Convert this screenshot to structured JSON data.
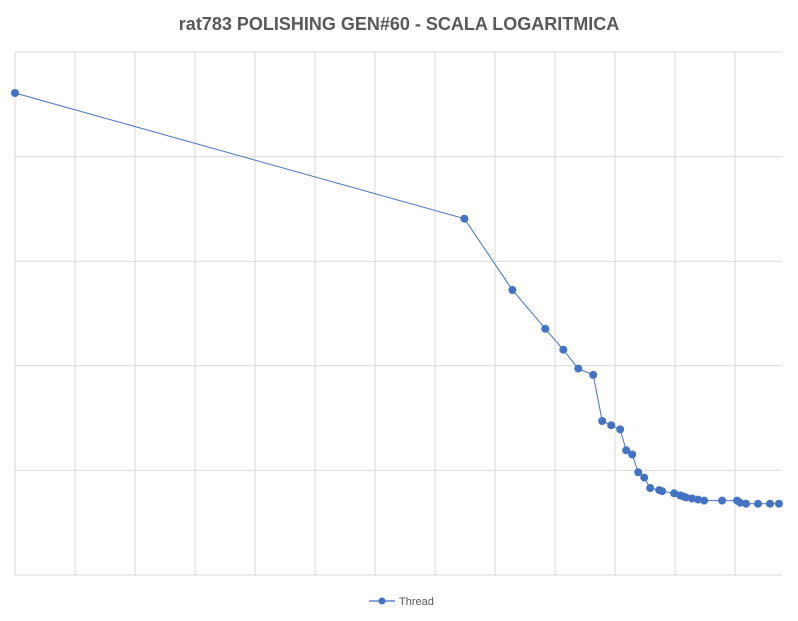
{
  "chart_data": {
    "type": "line",
    "title": "rat783 POLISHING GEN#60 - SCALA LOGARITMICA",
    "xlabel": "",
    "ylabel": "",
    "y_scale": "log",
    "grid": true,
    "legend_position": "bottom",
    "line_color": "#4472c4",
    "xlim": [
      0,
      128
    ],
    "ylim": [
      0,
      4.6
    ],
    "series": [
      {
        "name": "Thread",
        "x": [
          0,
          75,
          83,
          88.5,
          91.5,
          94,
          96.5,
          98,
          99.5,
          101,
          102,
          103,
          104,
          105,
          106,
          107.5,
          108,
          110,
          111,
          111.5,
          112,
          113,
          114,
          115,
          118,
          120.5,
          121,
          122,
          124,
          126,
          127.5
        ],
        "y": [
          4.6,
          3.4,
          2.72,
          2.35,
          2.15,
          1.97,
          1.91,
          1.47,
          1.43,
          1.39,
          1.19,
          1.15,
          0.98,
          0.93,
          0.83,
          0.81,
          0.8,
          0.78,
          0.76,
          0.75,
          0.74,
          0.73,
          0.72,
          0.71,
          0.71,
          0.71,
          0.69,
          0.68,
          0.68,
          0.68,
          0.68
        ]
      }
    ]
  }
}
